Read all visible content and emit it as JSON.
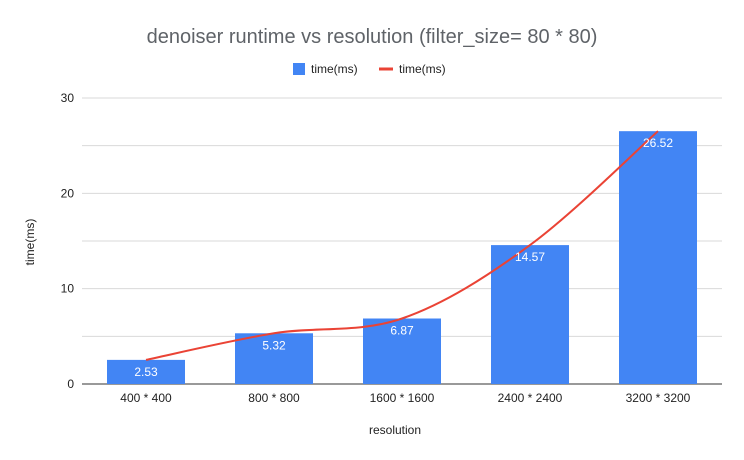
{
  "chart_data": {
    "type": "bar",
    "title": "denoiser runtime vs resolution (filter_size= 80 * 80)",
    "xlabel": "resolution",
    "ylabel": "time(ms)",
    "categories": [
      "400 * 400",
      "800 * 800",
      "1600 * 1600",
      "2400 * 2400",
      "3200 * 3200"
    ],
    "series": [
      {
        "name": "time(ms)",
        "kind": "bar",
        "values": [
          2.53,
          5.32,
          6.87,
          14.57,
          26.52
        ],
        "color": "#4285f4"
      },
      {
        "name": "time(ms)",
        "kind": "line",
        "smooth": true,
        "values": [
          2.53,
          5.32,
          6.87,
          14.57,
          26.52
        ],
        "color": "#ea4335"
      }
    ],
    "data_labels": [
      "2.53",
      "5.32",
      "6.87",
      "14.57",
      "26.52"
    ],
    "ylim": [
      0,
      30
    ],
    "yticks": [
      "0",
      "10",
      "20",
      "30"
    ],
    "grid": true,
    "legend": "top-center"
  }
}
